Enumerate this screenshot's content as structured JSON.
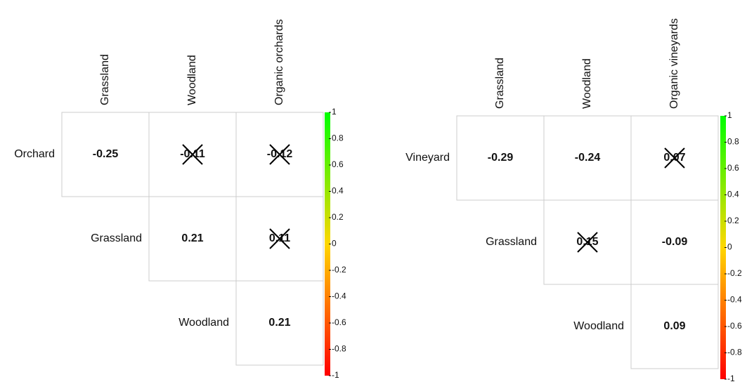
{
  "chart_data": [
    {
      "type": "correlation",
      "rows": [
        "Orchard",
        "Grassland",
        "Woodland"
      ],
      "columns": [
        "Grassland",
        "Woodland",
        "Organic orchards"
      ],
      "values": [
        [
          -0.25,
          -0.11,
          -0.12
        ],
        [
          null,
          0.21,
          0.11
        ],
        [
          null,
          null,
          0.21
        ]
      ],
      "crossed": [
        [
          false,
          true,
          true
        ],
        [
          false,
          false,
          true
        ],
        [
          false,
          false,
          false
        ]
      ],
      "colormap": [
        "#ff0000",
        "#ffd700",
        "#00ff00"
      ],
      "ylim": [
        -1,
        1
      ],
      "yticks": [
        1,
        0.8,
        0.6,
        0.4,
        0.2,
        0,
        -0.2,
        -0.4,
        -0.6,
        -0.8,
        -1
      ]
    },
    {
      "type": "correlation",
      "rows": [
        "Vineyard",
        "Grassland",
        "Woodland"
      ],
      "columns": [
        "Grassland",
        "Woodland",
        "Organic vineyards"
      ],
      "values": [
        [
          -0.29,
          -0.24,
          0.07
        ],
        [
          null,
          0.15,
          -0.09
        ],
        [
          null,
          null,
          0.09
        ]
      ],
      "crossed": [
        [
          false,
          false,
          true
        ],
        [
          false,
          true,
          false
        ],
        [
          false,
          false,
          false
        ]
      ],
      "colormap": [
        "#ff0000",
        "#ffd700",
        "#00ff00"
      ],
      "ylim": [
        -1,
        1
      ],
      "yticks": [
        1,
        0.8,
        0.6,
        0.4,
        0.2,
        0,
        -0.2,
        -0.4,
        -0.6,
        -0.8,
        -1
      ]
    }
  ]
}
